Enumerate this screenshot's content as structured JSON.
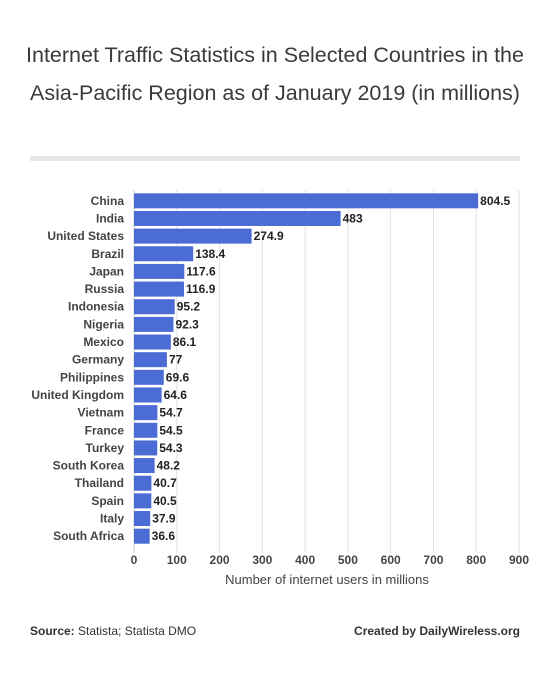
{
  "title": "Internet Traffic Statistics in Selected Countries in the Asia-Pacific Region as of January 2019 (in millions)",
  "footer": {
    "source_label": "Source:",
    "source_text": "Statista; Statista DMO",
    "credit": "Created by DailyWireless.org"
  },
  "chart_data": {
    "type": "bar",
    "orientation": "horizontal",
    "categories": [
      "China",
      "India",
      "United States",
      "Brazil",
      "Japan",
      "Russia",
      "Indonesia",
      "Nigeria",
      "Mexico",
      "Germany",
      "Philippines",
      "United Kingdom",
      "Vietnam",
      "France",
      "Turkey",
      "South Korea",
      "Thailand",
      "Spain",
      "Italy",
      "South Africa"
    ],
    "values": [
      804.5,
      483,
      274.9,
      138.4,
      117.6,
      116.9,
      95.2,
      92.3,
      86.1,
      77,
      69.6,
      64.6,
      54.7,
      54.5,
      54.3,
      48.2,
      40.7,
      40.5,
      37.9,
      36.6
    ],
    "value_labels": [
      "804.5",
      "483",
      "274.9",
      "138.4",
      "117.6",
      "116.9",
      "95.2",
      "92.3",
      "86.1",
      "77",
      "69.6",
      "64.6",
      "54.7",
      "54.5",
      "54.3",
      "48.2",
      "40.7",
      "40.5",
      "37.9",
      "36.6"
    ],
    "xlabel": "Number of internet users in millions",
    "ylabel": "",
    "xlim": [
      0,
      900
    ],
    "xticks": [
      0,
      100,
      200,
      300,
      400,
      500,
      600,
      700,
      800,
      900
    ],
    "bar_color": "#4a6cd4",
    "grid": true
  }
}
